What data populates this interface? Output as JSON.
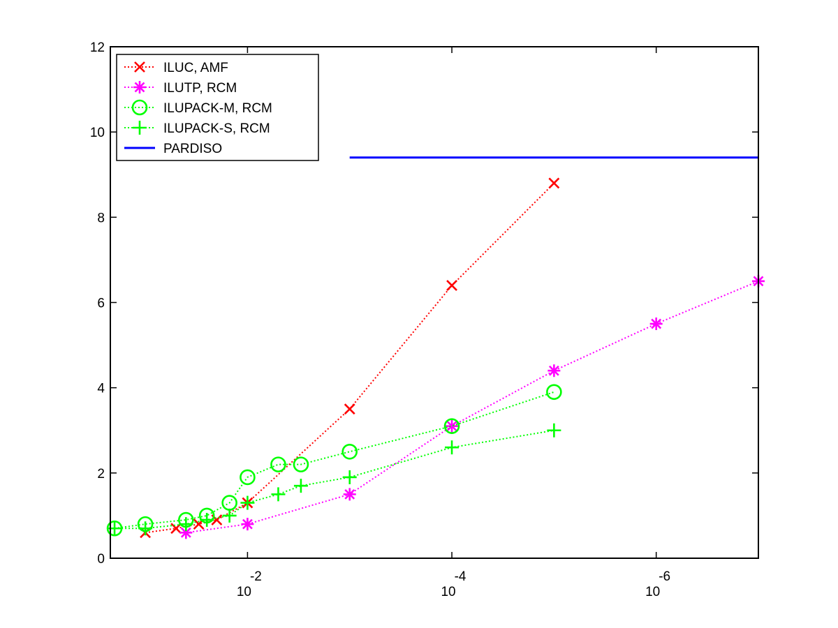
{
  "chart_data": {
    "type": "line",
    "x_scale": "log",
    "x_reversed": true,
    "xlim": [
      0.22,
      1e-07
    ],
    "ylim": [
      0,
      12
    ],
    "grid": false,
    "legend_position": "top-left",
    "y_ticks": [
      0,
      2,
      4,
      6,
      8,
      10,
      12
    ],
    "x_ticks": [
      {
        "value": 0.01,
        "base": "10",
        "exponent": "-2"
      },
      {
        "value": 0.0001,
        "base": "10",
        "exponent": "-4"
      },
      {
        "value": 1e-06,
        "base": "10",
        "exponent": "-6"
      }
    ],
    "series": [
      {
        "name": "ILUC, AMF",
        "color": "#ff0000",
        "marker": "x",
        "line_style": "dotted",
        "x": [
          0.1,
          0.05,
          0.03,
          0.02,
          0.01,
          0.001,
          0.0001,
          1e-05
        ],
        "y": [
          0.6,
          0.7,
          0.8,
          0.9,
          1.3,
          3.5,
          6.4,
          8.8
        ]
      },
      {
        "name": "ILUTP, RCM",
        "color": "#ff00ff",
        "marker": "asterisk",
        "line_style": "dotted",
        "x": [
          0.04,
          0.01,
          0.001,
          0.0001,
          1e-05,
          1e-06,
          1e-07
        ],
        "y": [
          0.6,
          0.8,
          1.5,
          3.1,
          4.4,
          5.5,
          6.5
        ]
      },
      {
        "name": "ILUPACK-M, RCM",
        "color": "#00ff00",
        "marker": "circle",
        "line_style": "dotted",
        "x": [
          0.2,
          0.1,
          0.04,
          0.025,
          0.015,
          0.01,
          0.005,
          0.003,
          0.001,
          0.0001,
          1e-05
        ],
        "y": [
          0.7,
          0.8,
          0.9,
          1.0,
          1.3,
          1.9,
          2.2,
          2.2,
          2.5,
          3.1,
          3.9
        ]
      },
      {
        "name": "ILUPACK-S, RCM",
        "color": "#00ff00",
        "marker": "plus",
        "line_style": "dotted",
        "x": [
          0.2,
          0.1,
          0.04,
          0.025,
          0.015,
          0.01,
          0.005,
          0.003,
          0.001,
          0.0001,
          1e-05
        ],
        "y": [
          0.7,
          0.7,
          0.8,
          0.9,
          1.0,
          1.3,
          1.5,
          1.7,
          1.9,
          2.6,
          3.0
        ]
      },
      {
        "name": "PARDISO",
        "color": "#0000ff",
        "marker": "none",
        "line_style": "solid",
        "x": [
          0.001,
          1e-07
        ],
        "y": [
          9.4,
          9.4
        ]
      }
    ]
  }
}
